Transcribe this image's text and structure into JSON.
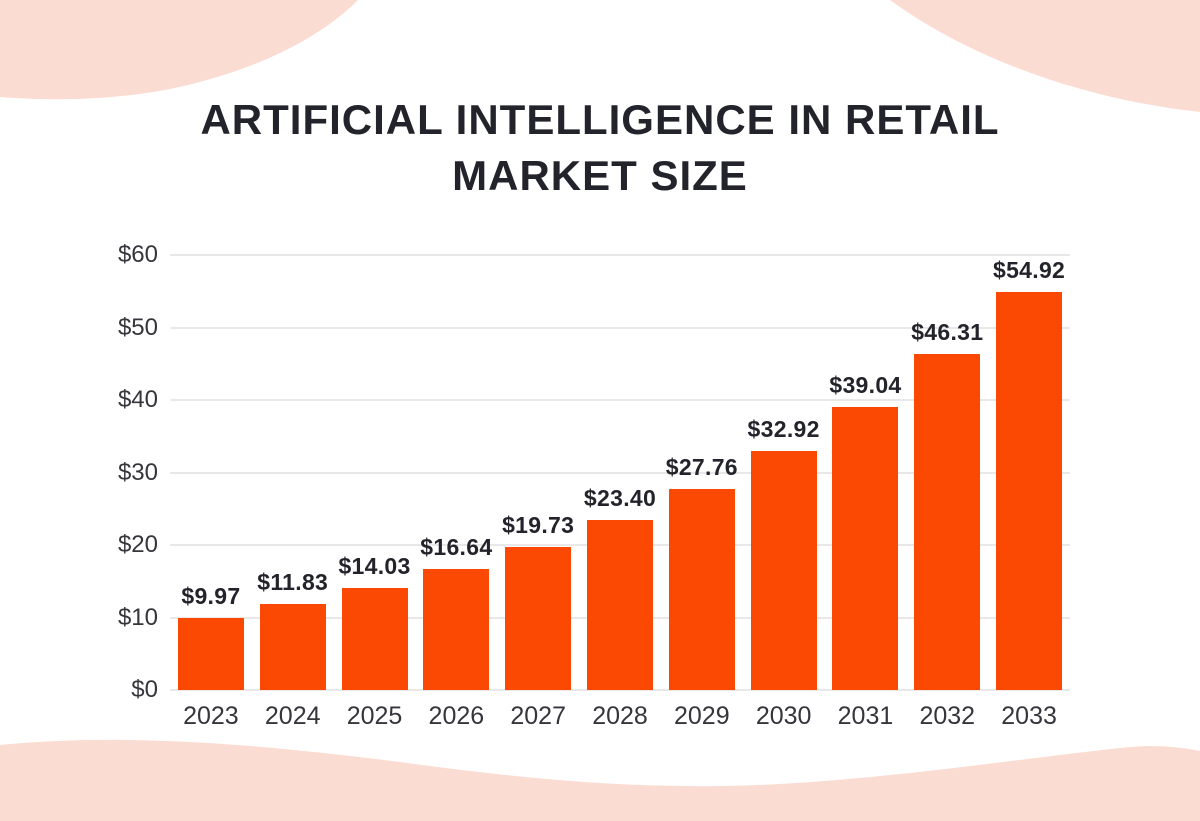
{
  "colors": {
    "background": "#FFFFFF",
    "bar": "#FB4903",
    "decor_pink": "#FBDCD2",
    "title_text": "#23232B",
    "axis_text": "#35353C",
    "gridline": "#E9E7E7"
  },
  "chart_data": {
    "type": "bar",
    "title": "ARTIFICIAL INTELLIGENCE IN RETAIL MARKET SIZE",
    "title_line1": "ARTIFICIAL INTELLIGENCE IN RETAIL",
    "title_line2": "MARKET SIZE",
    "xlabel": "",
    "ylabel": "",
    "categories": [
      "2023",
      "2024",
      "2025",
      "2026",
      "2027",
      "2028",
      "2029",
      "2030",
      "2031",
      "2032",
      "2033"
    ],
    "values": [
      9.97,
      11.83,
      14.03,
      16.64,
      19.73,
      23.4,
      27.76,
      32.92,
      39.04,
      46.31,
      54.92
    ],
    "value_labels": [
      "$9.97",
      "$11.83",
      "$14.03",
      "$16.64",
      "$19.73",
      "$23.40",
      "$27.76",
      "$32.92",
      "$39.04",
      "$46.31",
      "$54.92"
    ],
    "ylim": [
      0,
      60
    ],
    "yticks": [
      {
        "value": 0,
        "label": "$0"
      },
      {
        "value": 10,
        "label": "$10"
      },
      {
        "value": 20,
        "label": "$20"
      },
      {
        "value": 30,
        "label": "$30"
      },
      {
        "value": 40,
        "label": "$40"
      },
      {
        "value": 50,
        "label": "$50"
      },
      {
        "value": 60,
        "label": "$60"
      }
    ],
    "grid": "horizontal",
    "legend": "none"
  }
}
